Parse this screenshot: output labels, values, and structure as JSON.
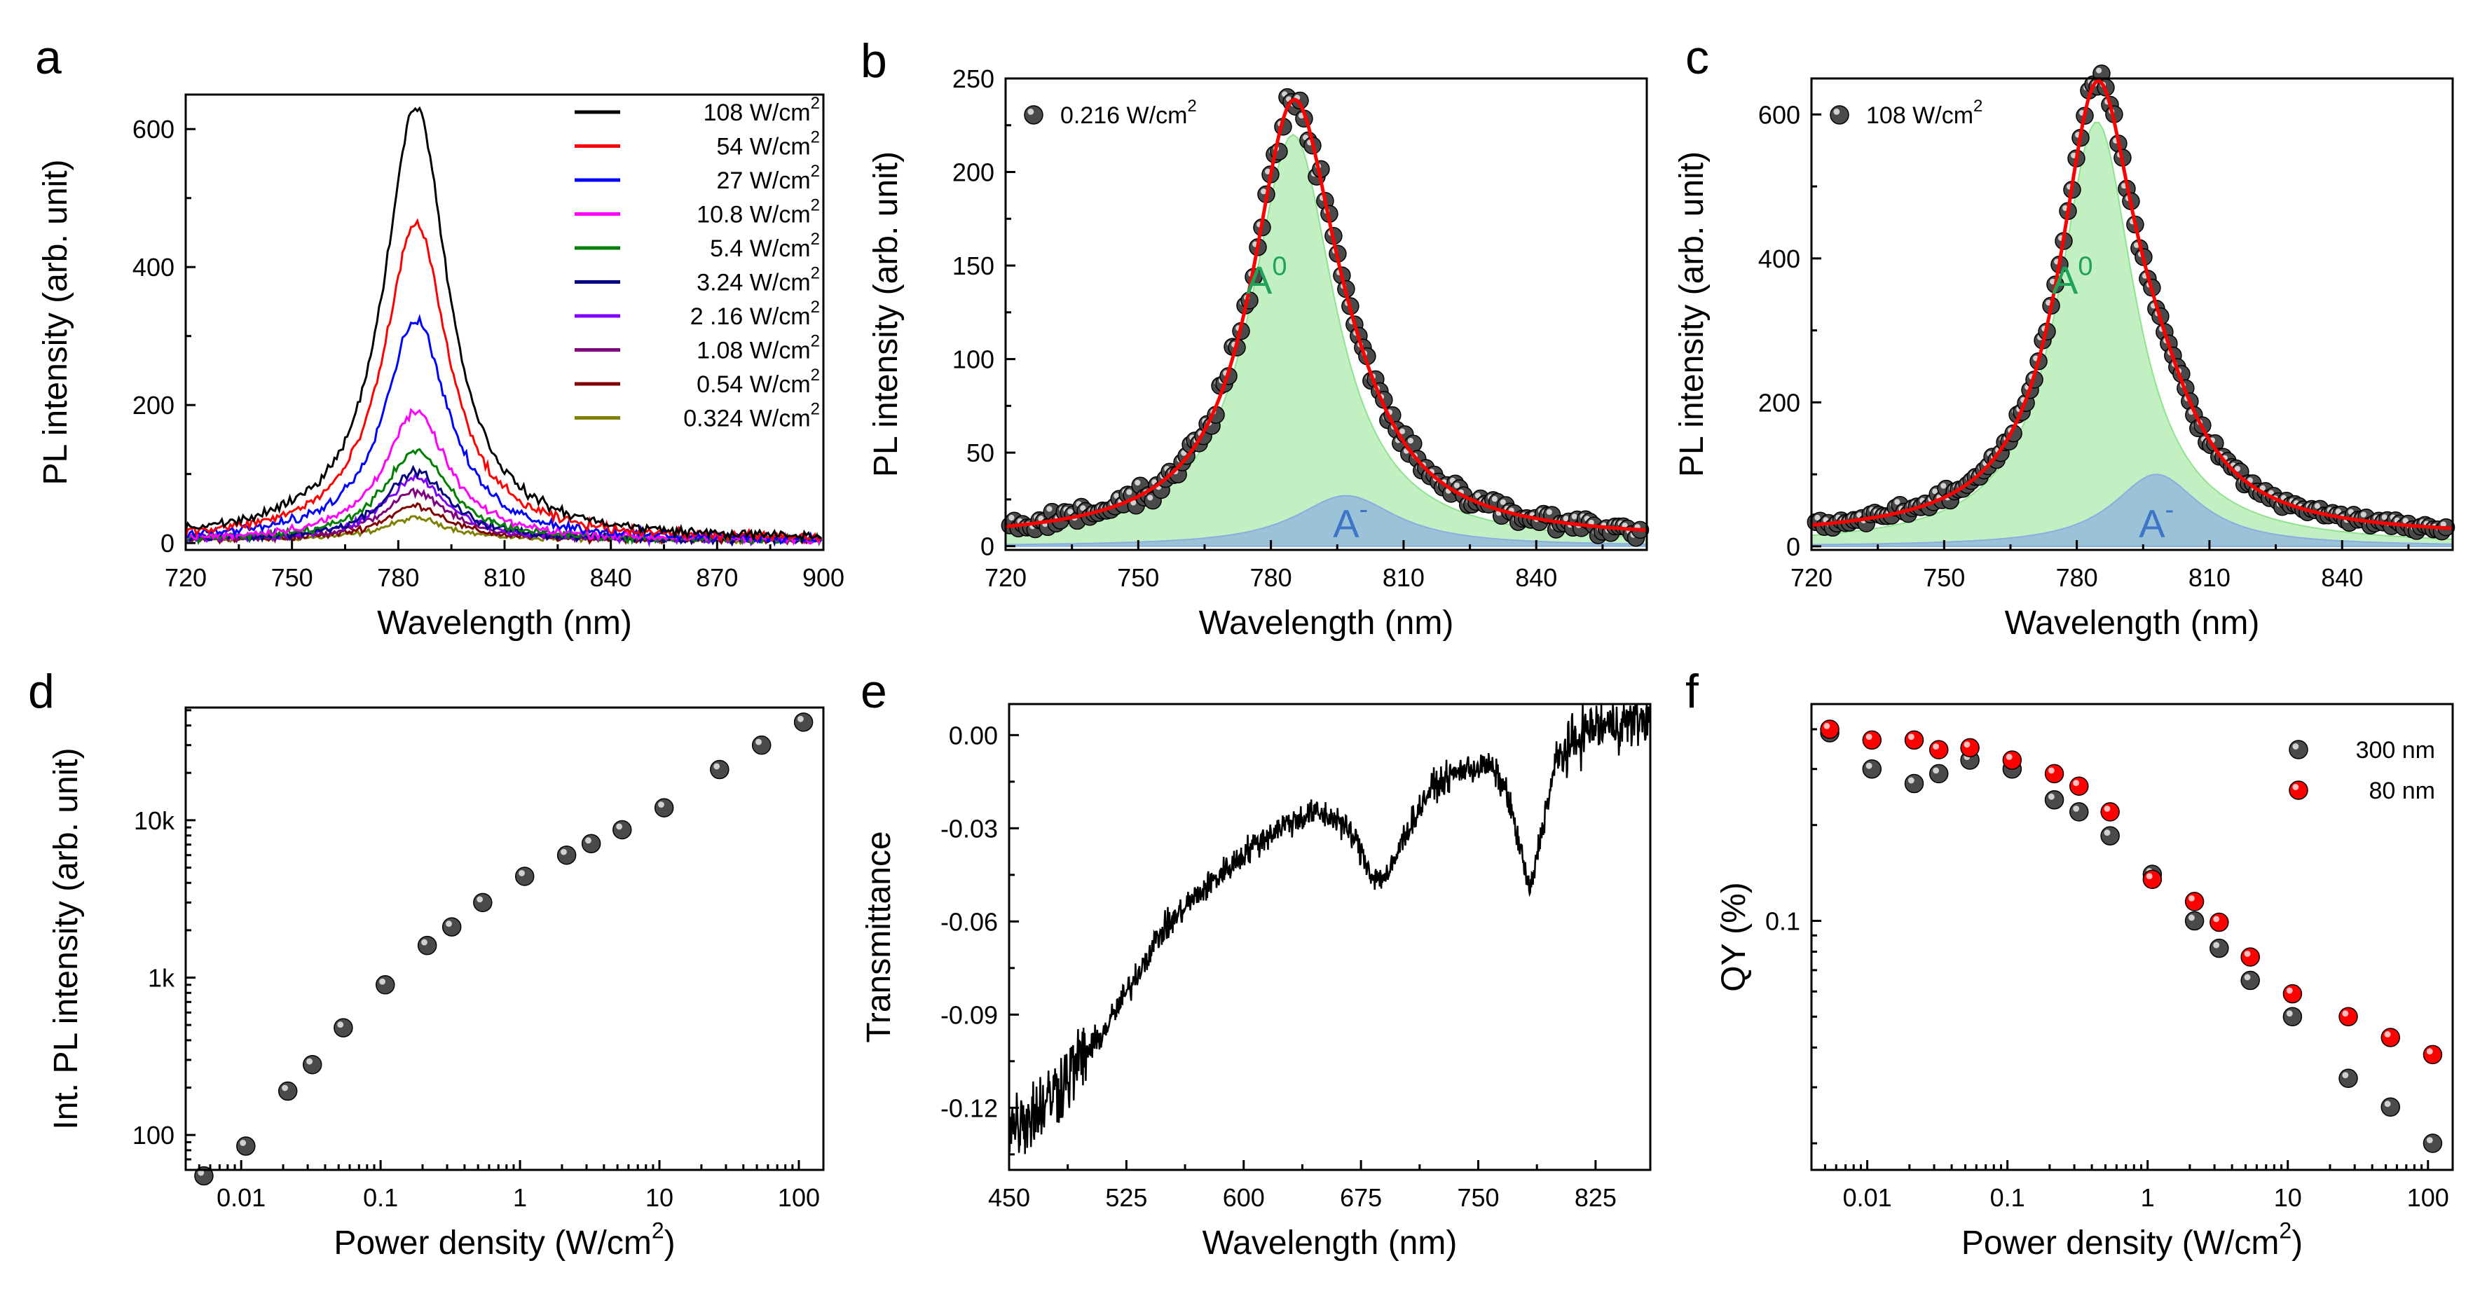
{
  "panels": {
    "a": {
      "label": "a"
    },
    "b": {
      "label": "b"
    },
    "c": {
      "label": "c"
    },
    "d": {
      "label": "d"
    },
    "e": {
      "label": "e"
    },
    "f": {
      "label": "f"
    }
  },
  "chart_data": [
    {
      "id": "a",
      "type": "line",
      "xlabel": "Wavelength (nm)",
      "ylabel": "PL intensity (arb. unit)",
      "xlim": [
        720,
        900
      ],
      "ylim": [
        -10,
        650
      ],
      "xticks": [
        "720",
        "750",
        "780",
        "810",
        "840",
        "870",
        "900"
      ],
      "yticks": [
        "0",
        "200",
        "400",
        "600"
      ],
      "legend_position": "top-right",
      "series": [
        {
          "name": "108 W/cm2",
          "legend_text": "108 W/cm",
          "sup": "2",
          "color": "#000000",
          "peak": 630,
          "center": 785,
          "width": 11,
          "noise": 6
        },
        {
          "name": "54 W/cm2",
          "legend_text": "54 W/cm",
          "sup": "2",
          "color": "#ff0000",
          "peak": 460,
          "center": 785,
          "width": 11,
          "noise": 6
        },
        {
          "name": "27 W/cm2",
          "legend_text": "27 W/cm",
          "sup": "2",
          "color": "#0000ff",
          "peak": 320,
          "center": 785,
          "width": 11,
          "noise": 6
        },
        {
          "name": "10.8 W/cm2",
          "legend_text": "10.8 W/cm",
          "sup": "2",
          "color": "#ff00ff",
          "peak": 185,
          "center": 785,
          "width": 11,
          "noise": 5
        },
        {
          "name": "5.4 W/cm2",
          "legend_text": "5.4 W/cm",
          "sup": "2",
          "color": "#008000",
          "peak": 130,
          "center": 785,
          "width": 11,
          "noise": 5
        },
        {
          "name": "3.24 W/cm2",
          "legend_text": "3.24 W/cm",
          "sup": "2",
          "color": "#000080",
          "peak": 100,
          "center": 785,
          "width": 11,
          "noise": 5
        },
        {
          "name": "2.16 W/cm2",
          "legend_text": "2 .16 W/cm",
          "sup": "2",
          "color": "#8000ff",
          "peak": 90,
          "center": 785,
          "width": 11,
          "noise": 5
        },
        {
          "name": "1.08 W/cm2",
          "legend_text": "1.08 W/cm",
          "sup": "2",
          "color": "#800080",
          "peak": 70,
          "center": 785,
          "width": 11,
          "noise": 4
        },
        {
          "name": "0.54 W/cm2",
          "legend_text": "0.54 W/cm",
          "sup": "2",
          "color": "#800000",
          "peak": 50,
          "center": 785,
          "width": 11,
          "noise": 4
        },
        {
          "name": "0.324 W/cm2",
          "legend_text": "0.324 W/cm",
          "sup": "2",
          "color": "#808000",
          "peak": 32,
          "center": 785,
          "width": 11,
          "noise": 3
        }
      ]
    },
    {
      "id": "b",
      "type": "scatter",
      "xlabel": "Wavelength (nm)",
      "ylabel": "PL intensity (arb. unit)",
      "xlim": [
        720,
        865
      ],
      "ylim": [
        -2,
        250
      ],
      "xticks": [
        "720",
        "750",
        "780",
        "810",
        "840"
      ],
      "yticks": [
        "0",
        "50",
        "100",
        "150",
        "200",
        "250"
      ],
      "legend": {
        "text": "0.216 W/cm",
        "sup": "2"
      },
      "fit_color": "#ff0000",
      "components": [
        {
          "name": "A0",
          "label": "A",
          "sup": "0",
          "center": 785,
          "width": 11.5,
          "peak": 220,
          "fill": "#8fe38f",
          "label_color": "#1fa35a"
        },
        {
          "name": "A-",
          "label": "A",
          "sup": "-",
          "center": 797,
          "width": 14,
          "peak": 27,
          "fill": "#8aaee0",
          "label_color": "#3d74c7"
        }
      ],
      "baseline": 3,
      "data_noise": 7
    },
    {
      "id": "c",
      "type": "scatter",
      "xlabel": "Wavelength (nm)",
      "ylabel": "PL intensity (arb. unit)",
      "xlim": [
        720,
        865
      ],
      "ylim": [
        -5,
        650
      ],
      "xticks": [
        "720",
        "750",
        "780",
        "810",
        "840"
      ],
      "yticks": [
        "0",
        "200",
        "400",
        "600"
      ],
      "legend": {
        "text": "108 W/cm",
        "sup": "2"
      },
      "fit_color": "#ff0000",
      "components": [
        {
          "name": "A0",
          "label": "A",
          "sup": "0",
          "center": 784.5,
          "width": 10.5,
          "peak": 590,
          "fill": "#8fe38f",
          "label_color": "#1fa35a"
        },
        {
          "name": "A-",
          "label": "A",
          "sup": "-",
          "center": 798,
          "width": 12,
          "peak": 100,
          "fill": "#8aaee0",
          "label_color": "#3d74c7"
        }
      ],
      "baseline": 12,
      "data_noise": 12
    },
    {
      "id": "d",
      "type": "scatter",
      "xscale": "log",
      "yscale": "log",
      "xlabel": "Power density (W/cm",
      "xlabel_sup": "2",
      "xlabel_tail": ")",
      "ylabel": "Int. PL intensity (arb. unit)",
      "xlim": [
        0.004,
        150
      ],
      "ylim": [
        60,
        52000
      ],
      "xticks": [
        {
          "v": 0.01,
          "t": "0.01"
        },
        {
          "v": 0.1,
          "t": "0.1"
        },
        {
          "v": 1,
          "t": "1"
        },
        {
          "v": 10,
          "t": "10"
        },
        {
          "v": 100,
          "t": "100"
        }
      ],
      "yticks": [
        {
          "v": 100,
          "t": "100"
        },
        {
          "v": 1000,
          "t": "1k"
        },
        {
          "v": 10000,
          "t": "10k"
        }
      ],
      "x": [
        0.0054,
        0.0108,
        0.0216,
        0.0324,
        0.054,
        0.108,
        0.216,
        0.324,
        0.54,
        1.08,
        2.16,
        3.24,
        5.4,
        10.8,
        27,
        54,
        108
      ],
      "y": [
        55,
        85,
        190,
        280,
        480,
        900,
        1600,
        2100,
        3000,
        4400,
        6000,
        7100,
        8700,
        12000,
        21000,
        30000,
        42000
      ]
    },
    {
      "id": "e",
      "type": "line",
      "xlabel": "Wavelength (nm)",
      "ylabel": "Transmittance",
      "xlim": [
        450,
        860
      ],
      "ylim": [
        -0.14,
        0.01
      ],
      "xticks": [
        "450",
        "525",
        "600",
        "675",
        "750",
        "825"
      ],
      "yticks": [
        "0.00",
        "-0.03",
        "-0.06",
        "-0.09",
        "-0.12"
      ],
      "anchors": [
        [
          450,
          -0.126
        ],
        [
          470,
          -0.12
        ],
        [
          490,
          -0.108
        ],
        [
          510,
          -0.096
        ],
        [
          525,
          -0.083
        ],
        [
          545,
          -0.065
        ],
        [
          565,
          -0.054
        ],
        [
          585,
          -0.045
        ],
        [
          605,
          -0.036
        ],
        [
          625,
          -0.029
        ],
        [
          645,
          -0.025
        ],
        [
          660,
          -0.027
        ],
        [
          672,
          -0.034
        ],
        [
          683,
          -0.046
        ],
        [
          693,
          -0.045
        ],
        [
          703,
          -0.032
        ],
        [
          720,
          -0.017
        ],
        [
          740,
          -0.011
        ],
        [
          758,
          -0.01
        ],
        [
          768,
          -0.018
        ],
        [
          777,
          -0.037
        ],
        [
          783,
          -0.051
        ],
        [
          790,
          -0.032
        ],
        [
          800,
          -0.008
        ],
        [
          820,
          0.002
        ],
        [
          845,
          0.004
        ],
        [
          860,
          0.006
        ]
      ],
      "noise": 0.004
    },
    {
      "id": "f",
      "type": "scatter",
      "xscale": "log",
      "yscale": "log",
      "xlabel": "Power density (W/cm",
      "xlabel_sup": "2",
      "xlabel_tail": ")",
      "ylabel": "QY (%)",
      "xlim": [
        0.004,
        150
      ],
      "ylim": [
        0.0165,
        0.48
      ],
      "xticks": [
        {
          "v": 0.01,
          "t": "0.01"
        },
        {
          "v": 0.1,
          "t": "0.1"
        },
        {
          "v": 1,
          "t": "1"
        },
        {
          "v": 10,
          "t": "10"
        },
        {
          "v": 100,
          "t": "100"
        }
      ],
      "yticks": [
        {
          "v": 0.1,
          "t": "0.1"
        }
      ],
      "legend_position": "top-right",
      "x": [
        0.0054,
        0.0108,
        0.0216,
        0.0324,
        0.054,
        0.108,
        0.216,
        0.324,
        0.54,
        1.08,
        2.16,
        3.24,
        5.4,
        10.8,
        27,
        54,
        108
      ],
      "series": [
        {
          "name": "300 nm",
          "color": "#000000",
          "values": [
            0.39,
            0.3,
            0.27,
            0.29,
            0.32,
            0.3,
            0.24,
            0.22,
            0.185,
            0.14,
            0.1,
            0.082,
            0.065,
            0.05,
            0.032,
            0.026,
            0.02
          ]
        },
        {
          "name": "80 nm",
          "color": "#ff0000",
          "values": [
            0.4,
            0.37,
            0.37,
            0.345,
            0.35,
            0.32,
            0.29,
            0.265,
            0.22,
            0.135,
            0.115,
            0.099,
            0.077,
            0.059,
            0.05,
            0.043,
            0.038
          ]
        }
      ]
    }
  ]
}
